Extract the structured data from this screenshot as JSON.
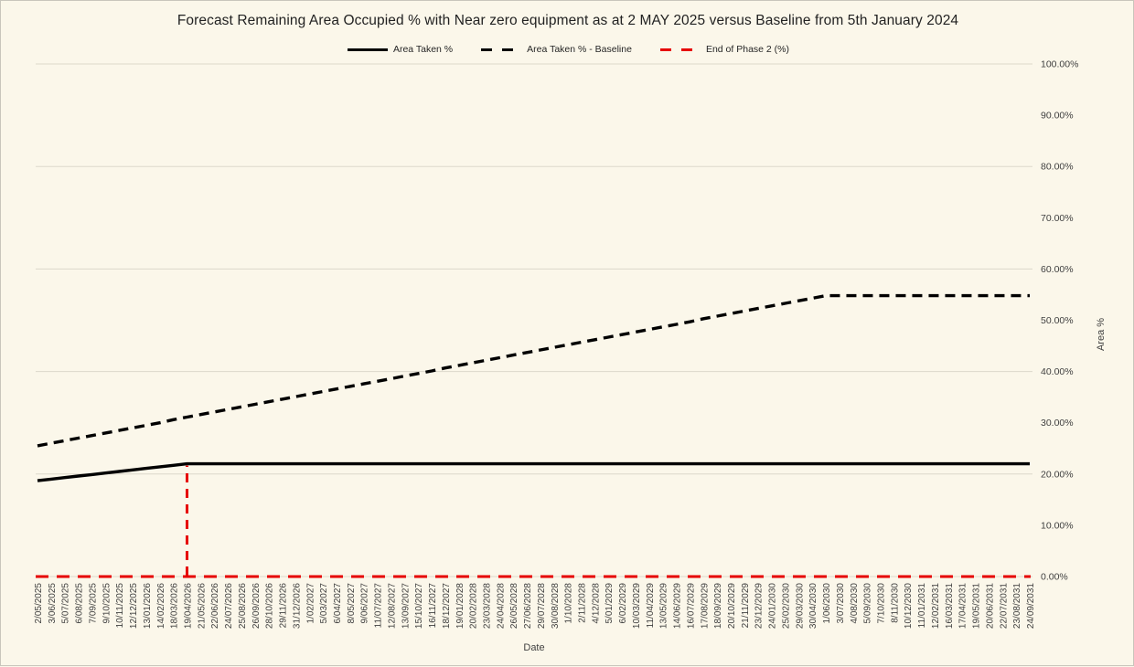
{
  "page": {
    "background_color": "#FBF7EA",
    "border_color": "#C9C6BC"
  },
  "chart_data": {
    "type": "line",
    "title": "Forecast Remaining Area Occupied % with Near zero equipment as at 2 MAY 2025 versus Baseline from 5th January 2024",
    "xlabel": "Date",
    "ylabel": "Area %",
    "ylim": [
      0,
      100
    ],
    "grid": "horizontal gridlines at every 20%",
    "legend_position": "top center",
    "y_axis_side": "right",
    "y_tick_labels": [
      "100.00%",
      "90.00%",
      "80.00%",
      "70.00%",
      "60.00%",
      "50.00%",
      "40.00%",
      "30.00%",
      "20.00%",
      "10.00%",
      "0.00%"
    ],
    "y_tick_values": [
      100,
      90,
      80,
      70,
      60,
      50,
      40,
      30,
      20,
      10,
      0
    ],
    "gridline_values": [
      100,
      80,
      60,
      40,
      20,
      0
    ],
    "categories": [
      "2/05/2025",
      "3/06/2025",
      "5/07/2025",
      "6/08/2025",
      "7/09/2025",
      "9/10/2025",
      "10/11/2025",
      "12/12/2025",
      "13/01/2026",
      "14/02/2026",
      "18/03/2026",
      "19/04/2026",
      "21/05/2026",
      "22/06/2026",
      "24/07/2026",
      "25/08/2026",
      "26/09/2026",
      "28/10/2026",
      "29/11/2026",
      "31/12/2026",
      "1/02/2027",
      "5/03/2027",
      "6/04/2027",
      "8/05/2027",
      "9/06/2027",
      "11/07/2027",
      "12/08/2027",
      "13/09/2027",
      "15/10/2027",
      "16/11/2027",
      "18/12/2027",
      "19/01/2028",
      "20/02/2028",
      "23/03/2028",
      "24/04/2028",
      "26/05/2028",
      "27/06/2028",
      "29/07/2028",
      "30/08/2028",
      "1/10/2028",
      "2/11/2028",
      "4/12/2028",
      "5/01/2029",
      "6/02/2029",
      "10/03/2029",
      "11/04/2029",
      "13/05/2029",
      "14/06/2029",
      "16/07/2029",
      "17/08/2029",
      "18/09/2029",
      "20/10/2029",
      "21/11/2029",
      "23/12/2029",
      "24/01/2030",
      "25/02/2030",
      "29/03/2030",
      "30/04/2030",
      "1/06/2030",
      "3/07/2030",
      "4/08/2030",
      "5/09/2030",
      "7/10/2030",
      "8/11/2030",
      "10/12/2030",
      "11/01/2031",
      "12/02/2031",
      "16/03/2031",
      "17/04/2031",
      "19/05/2031",
      "20/06/2031",
      "22/07/2031",
      "23/08/2031",
      "24/09/2031"
    ],
    "series": [
      {
        "name": "Area Taken %",
        "color": "#000000",
        "line_style": "solid",
        "values": [
          18.7,
          19,
          19.3,
          19.6,
          19.9,
          20.2,
          20.5,
          20.8,
          21.1,
          21.4,
          21.7,
          22,
          22,
          22,
          22,
          22,
          22,
          22,
          22,
          22,
          22,
          22,
          22,
          22,
          22,
          22,
          22,
          22,
          22,
          22,
          22,
          22,
          22,
          22,
          22,
          22,
          22,
          22,
          22,
          22,
          22,
          22,
          22,
          22,
          22,
          22,
          22,
          22,
          22,
          22,
          22,
          22,
          22,
          22,
          22,
          22,
          22,
          22,
          22,
          22,
          22,
          22,
          22,
          22,
          22,
          22,
          22,
          22,
          22,
          22,
          22,
          22,
          22,
          22
        ]
      },
      {
        "name": "Area Taken % - Baseline",
        "color": "#000000",
        "line_style": "dashed",
        "values": [
          25.5,
          26,
          26.5,
          27,
          27.5,
          28,
          28.5,
          29,
          29.5,
          30,
          30.6,
          31.1,
          31.6,
          32.1,
          32.6,
          33.1,
          33.6,
          34.1,
          34.6,
          35.1,
          35.6,
          36.1,
          36.6,
          37.1,
          37.6,
          38.1,
          38.6,
          39.1,
          39.6,
          40.1,
          40.7,
          41.2,
          41.7,
          42.2,
          42.7,
          43.2,
          43.7,
          44.2,
          44.7,
          45.2,
          45.7,
          46.2,
          46.7,
          47.2,
          47.7,
          48.2,
          48.7,
          49.2,
          49.7,
          50.3,
          50.8,
          51.3,
          51.8,
          52.3,
          52.8,
          53.3,
          53.8,
          54.3,
          54.8,
          54.8,
          54.8,
          54.8,
          54.8,
          54.8,
          54.8,
          54.8,
          54.8,
          54.8,
          54.8,
          54.8,
          54.8,
          54.8,
          54.8,
          54.8
        ]
      },
      {
        "name": "End of Phase 2 (%)",
        "color": "#E60000",
        "line_style": "dashed",
        "render_as_vertical_spike": true,
        "spike_index": 11,
        "spike_date": "19/04/2026",
        "spike_value": 22,
        "base_value": 0,
        "values": [
          0,
          0,
          0,
          0,
          0,
          0,
          0,
          0,
          0,
          0,
          0,
          22,
          0,
          0,
          0,
          0,
          0,
          0,
          0,
          0,
          0,
          0,
          0,
          0,
          0,
          0,
          0,
          0,
          0,
          0,
          0,
          0,
          0,
          0,
          0,
          0,
          0,
          0,
          0,
          0,
          0,
          0,
          0,
          0,
          0,
          0,
          0,
          0,
          0,
          0,
          0,
          0,
          0,
          0,
          0,
          0,
          0,
          0,
          0,
          0,
          0,
          0,
          0,
          0,
          0,
          0,
          0,
          0,
          0,
          0,
          0,
          0,
          0,
          0
        ]
      }
    ]
  }
}
